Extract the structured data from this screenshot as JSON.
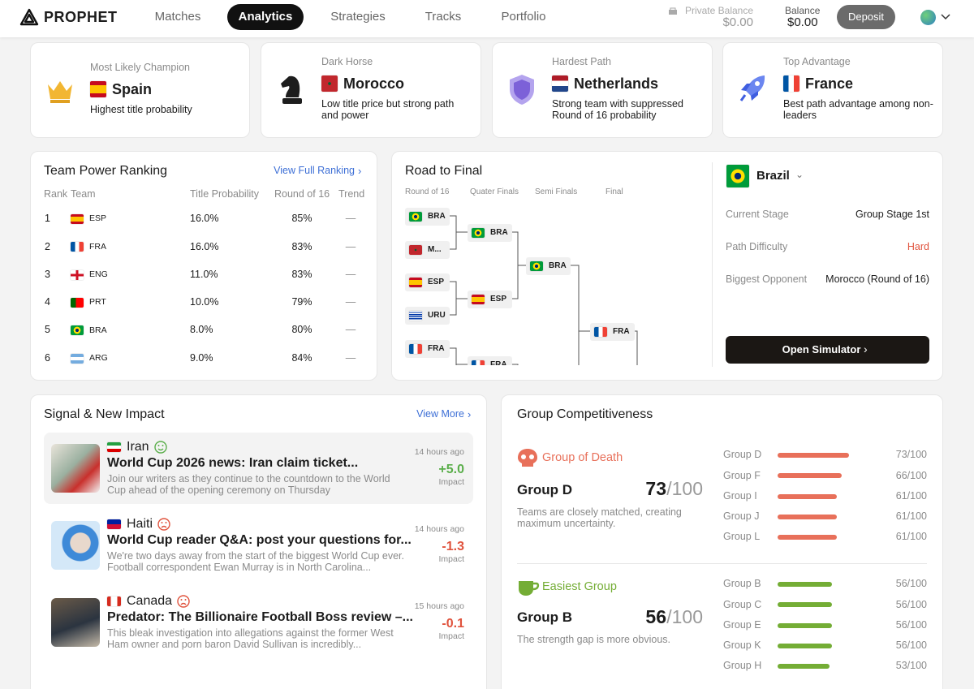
{
  "nav": {
    "brand": "PROPHET",
    "tabs": [
      "Matches",
      "Analytics",
      "Strategies",
      "Tracks",
      "Portfolio"
    ],
    "private_balance": {
      "label": "Private Balance",
      "amount": "$0.00"
    },
    "balance": {
      "label": "Balance",
      "amount": "$0.00"
    },
    "deposit": "Deposit"
  },
  "highlights": [
    {
      "label": "Most Likely Champion",
      "team": "Spain",
      "description": "Highest title probability"
    },
    {
      "label": "Dark Horse",
      "team": "Morocco",
      "description": "Low title price but strong path and power"
    },
    {
      "label": "Hardest Path",
      "team": "Netherlands",
      "description": "Strong team with suppressed Round of 16 probability"
    },
    {
      "label": "Top Advantage",
      "team": "France",
      "description": "Best path advantage among non-leaders"
    }
  ],
  "power_ranking": {
    "title": "Team Power Ranking",
    "link": "View Full Ranking",
    "columns": [
      "Rank",
      "Team",
      "Title Probability",
      "Round of 16",
      "Trend"
    ],
    "rows": [
      [
        1,
        "ESP",
        "16.0%",
        "85%",
        "—"
      ],
      [
        2,
        "FRA",
        "16.0%",
        "83%",
        "—"
      ],
      [
        3,
        "ENG",
        "11.0%",
        "83%",
        "—"
      ],
      [
        4,
        "PRT",
        "10.0%",
        "79%",
        "—"
      ],
      [
        5,
        "BRA",
        "8.0%",
        "80%",
        "—"
      ],
      [
        6,
        "ARG",
        "9.0%",
        "84%",
        "—"
      ]
    ]
  },
  "road_to_final": {
    "title": "Road to Final",
    "stages": [
      "Round of 16",
      "Quater Finals",
      "Semi Finals",
      "Final"
    ],
    "bracket": [
      [
        "BRA",
        "M...",
        "ESP",
        "URU",
        "FRA"
      ],
      [
        "BRA",
        "ESP",
        "FRA"
      ],
      [
        "BRA"
      ],
      [
        "FRA"
      ]
    ],
    "team": "Brazil",
    "details": [
      [
        "Current Stage",
        "Group Stage 1st"
      ],
      [
        "Path Difficulty",
        "Hard"
      ],
      [
        "Biggest Opponent",
        "Morocco (Round of 16)"
      ]
    ],
    "button": "Open Simulator"
  },
  "signals": {
    "title": "Signal & New Impact",
    "link": "View More",
    "items": [
      {
        "team": "Iran",
        "headline": "World Cup 2026 news: Iran claim ticket...",
        "body": "Join our writers as they continue to the countdown to the World Cup ahead of the opening ceremony on Thursday",
        "time": "14 hours ago",
        "impact": "+5.0",
        "impact_label": "Impact"
      },
      {
        "team": "Haiti",
        "headline": "World Cup reader Q&A: post your questions for...",
        "body": "We're two days away from the start of the biggest World Cup ever. Football correspondent Ewan Murray is in North Carolina...",
        "time": "14 hours ago",
        "impact": "-1.3",
        "impact_label": "Impact"
      },
      {
        "team": "Canada",
        "headline": "Predator: The Billionaire Football Boss review –...",
        "body": "This bleak investigation into allegations against the former West Ham owner and porn baron David Sullivan is incredibly...",
        "time": "15 hours ago",
        "impact": "-0.1",
        "impact_label": "Impact"
      }
    ]
  },
  "group_competitiveness": {
    "title": "Group Competitiveness",
    "sections": [
      {
        "tag": "Group of Death",
        "group": "Group D",
        "score": "73",
        "scale": "/100",
        "description": "Teams are closely matched, creating maximum uncertainty.",
        "color": "#e8705a",
        "bars": {
          "categories": [
            "Group D",
            "Group F",
            "Group I",
            "Group J",
            "Group L"
          ],
          "values": [
            73,
            66,
            61,
            61,
            61
          ],
          "value_labels": [
            "73/100",
            "66/100",
            "61/100",
            "61/100",
            "61/100"
          ],
          "xlim": [
            0,
            100
          ]
        }
      },
      {
        "tag": "Easiest Group",
        "group": "Group B",
        "score": "56",
        "scale": "/100",
        "description": "The strength gap is more obvious.",
        "color": "#74ad35",
        "bars": {
          "categories": [
            "Group B",
            "Group C",
            "Group E",
            "Group K",
            "Group H"
          ],
          "values": [
            56,
            56,
            56,
            56,
            53
          ],
          "value_labels": [
            "56/100",
            "56/100",
            "56/100",
            "56/100",
            "53/100"
          ],
          "xlim": [
            0,
            100
          ]
        }
      }
    ]
  }
}
